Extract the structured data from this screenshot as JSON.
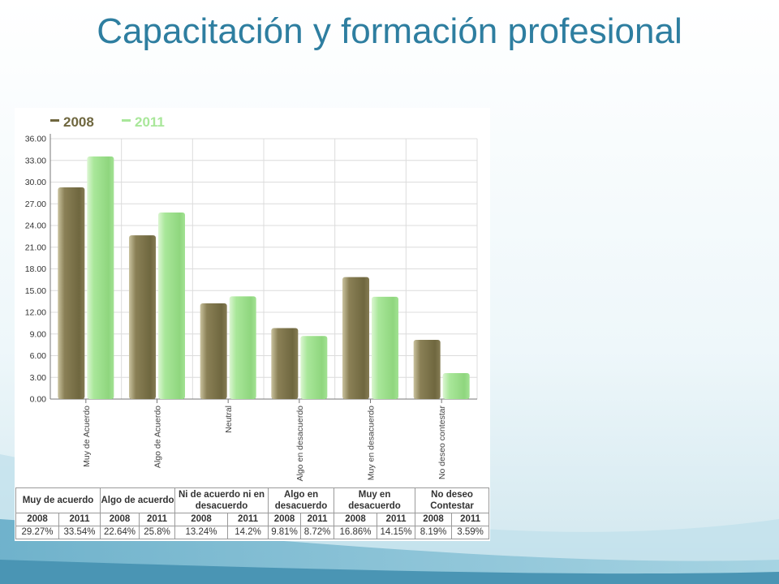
{
  "slide": {
    "title": "Capacitación y formación profesional"
  },
  "chart_data": {
    "type": "bar",
    "title": "",
    "xlabel": "",
    "ylabel": "",
    "categories": [
      "Muy de Acuerdo",
      "Algo de Acuerdo",
      "Neutral",
      "Algo en desacuerdo",
      "Muy en desacuerdo",
      "No deseo contestar"
    ],
    "series": [
      {
        "name": "2008",
        "color": "#8a8056",
        "values": [
          29.27,
          22.64,
          13.24,
          9.81,
          16.86,
          8.19
        ]
      },
      {
        "name": "2011",
        "color": "#a9e79a",
        "values": [
          33.54,
          25.8,
          14.2,
          8.72,
          14.15,
          3.59
        ]
      }
    ],
    "ylim": [
      0,
      36
    ],
    "yticks": [
      "0.00",
      "3.00",
      "6.00",
      "9.00",
      "12.00",
      "15.00",
      "18.00",
      "21.00",
      "24.00",
      "27.00",
      "30.00",
      "33.00",
      "36.00"
    ],
    "grid": true,
    "legend": "top-left"
  },
  "table": {
    "headers": [
      "Muy de acuerdo",
      "Algo de acuerdo",
      "Ni de acuerdo ni en desacuerdo",
      "Algo en desacuerdo",
      "Muy en desacuerdo",
      "No deseo Contestar"
    ],
    "years": [
      "2008",
      "2011",
      "2008",
      "2011",
      "2008",
      "2011",
      "2008",
      "2011",
      "2008",
      "2011",
      "2008",
      "2011"
    ],
    "values": [
      "29.27%",
      "33.54%",
      "22.64%",
      "25.8%",
      "13.24%",
      "14.2%",
      "9.81%",
      "8.72%",
      "16.86%",
      "14.15%",
      "8.19%",
      "3.59%"
    ]
  }
}
